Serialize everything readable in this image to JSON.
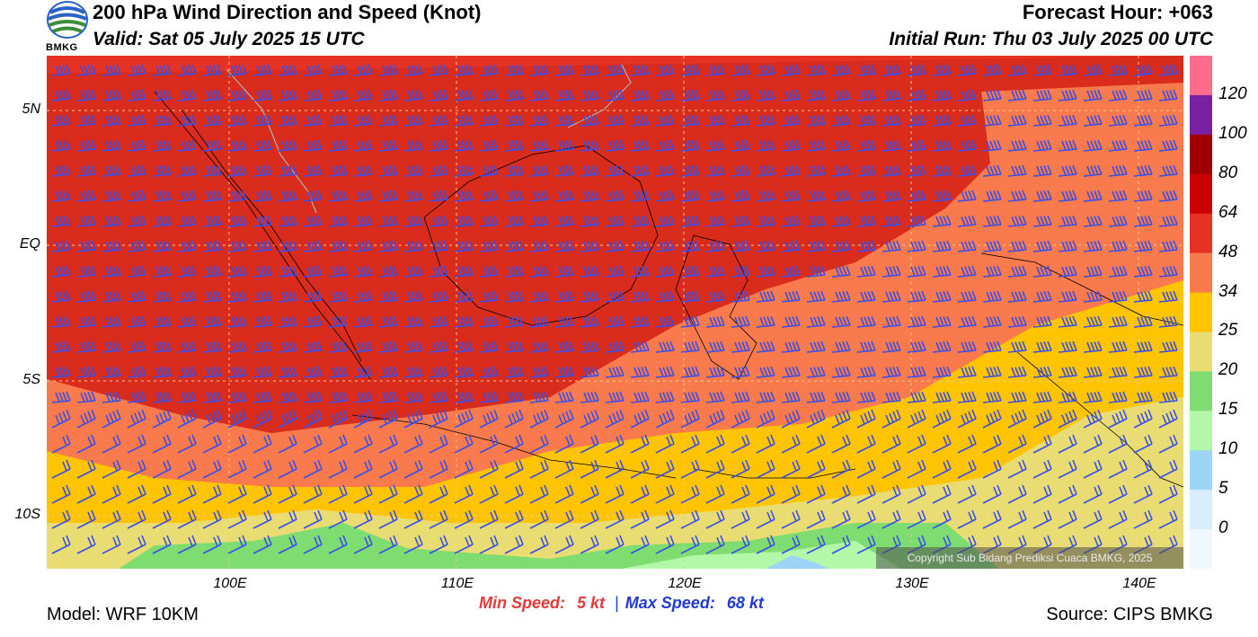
{
  "header": {
    "title": "200 hPa Wind Direction and Speed (Knot)",
    "valid": "Valid: Sat 05 July 2025 15 UTC",
    "forecast_hour": "Forecast Hour: +063",
    "initial_run": "Initial Run: Thu 03 July 2025 00 UTC",
    "logo_text": "BMKG"
  },
  "map": {
    "lat_labels": [
      "5N",
      "EQ",
      "5S",
      "10S"
    ],
    "lon_labels": [
      "100E",
      "110E",
      "120E",
      "130E",
      "140E"
    ],
    "copyright": "Copyright Sub Bidang Prediksi Cuaca BMKG, 2025"
  },
  "colorbar": {
    "labels": [
      "120",
      "100",
      "80",
      "64",
      "48",
      "34",
      "25",
      "20",
      "15",
      "10",
      "5",
      "0"
    ],
    "colors": [
      "#ff6b8a",
      "#7b1fa2",
      "#a00000",
      "#cc0000",
      "#e53222",
      "#f97a4c",
      "#ffc400",
      "#e9dc73",
      "#7fdc70",
      "#b3f7a8",
      "#9ed4f5",
      "#d8eefc",
      "#f0f8ff"
    ]
  },
  "stats": {
    "min_label": "Min Speed:",
    "min_value": "5 kt",
    "separator": "|",
    "max_label": "Max Speed:",
    "max_value": "68 kt"
  },
  "footer": {
    "model": "Model: WRF 10KM",
    "source": "Source: CIPS BMKG"
  },
  "colors": {
    "barb": "#3a4ee8",
    "grid": "#f3c98a"
  }
}
